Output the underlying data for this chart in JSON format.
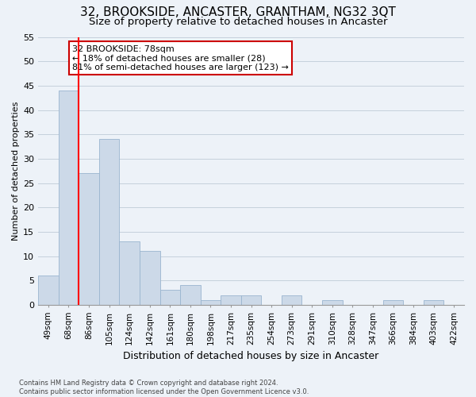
{
  "title": "32, BROOKSIDE, ANCASTER, GRANTHAM, NG32 3QT",
  "subtitle": "Size of property relative to detached houses in Ancaster",
  "xlabel": "Distribution of detached houses by size in Ancaster",
  "ylabel": "Number of detached properties",
  "categories": [
    "49sqm",
    "68sqm",
    "86sqm",
    "105sqm",
    "124sqm",
    "142sqm",
    "161sqm",
    "180sqm",
    "198sqm",
    "217sqm",
    "235sqm",
    "254sqm",
    "273sqm",
    "291sqm",
    "310sqm",
    "328sqm",
    "347sqm",
    "366sqm",
    "384sqm",
    "403sqm",
    "422sqm"
  ],
  "values": [
    6,
    44,
    27,
    34,
    13,
    11,
    3,
    4,
    1,
    2,
    2,
    0,
    2,
    0,
    1,
    0,
    0,
    1,
    0,
    1,
    0
  ],
  "bar_color": "#ccd9e8",
  "bar_edge_color": "#9ab5cf",
  "grid_color": "#c5d0dc",
  "background_color": "#edf2f8",
  "red_line_x": 1.5,
  "annotation_text": "32 BROOKSIDE: 78sqm\n← 18% of detached houses are smaller (28)\n81% of semi-detached houses are larger (123) →",
  "annotation_box_color": "#ffffff",
  "annotation_box_edge": "#cc0000",
  "footer": "Contains HM Land Registry data © Crown copyright and database right 2024.\nContains public sector information licensed under the Open Government Licence v3.0.",
  "ylim": [
    0,
    55
  ],
  "yticks": [
    0,
    5,
    10,
    15,
    20,
    25,
    30,
    35,
    40,
    45,
    50,
    55
  ],
  "title_fontsize": 11,
  "subtitle_fontsize": 9.5,
  "tick_fontsize": 7.5,
  "ylabel_fontsize": 8,
  "xlabel_fontsize": 9
}
